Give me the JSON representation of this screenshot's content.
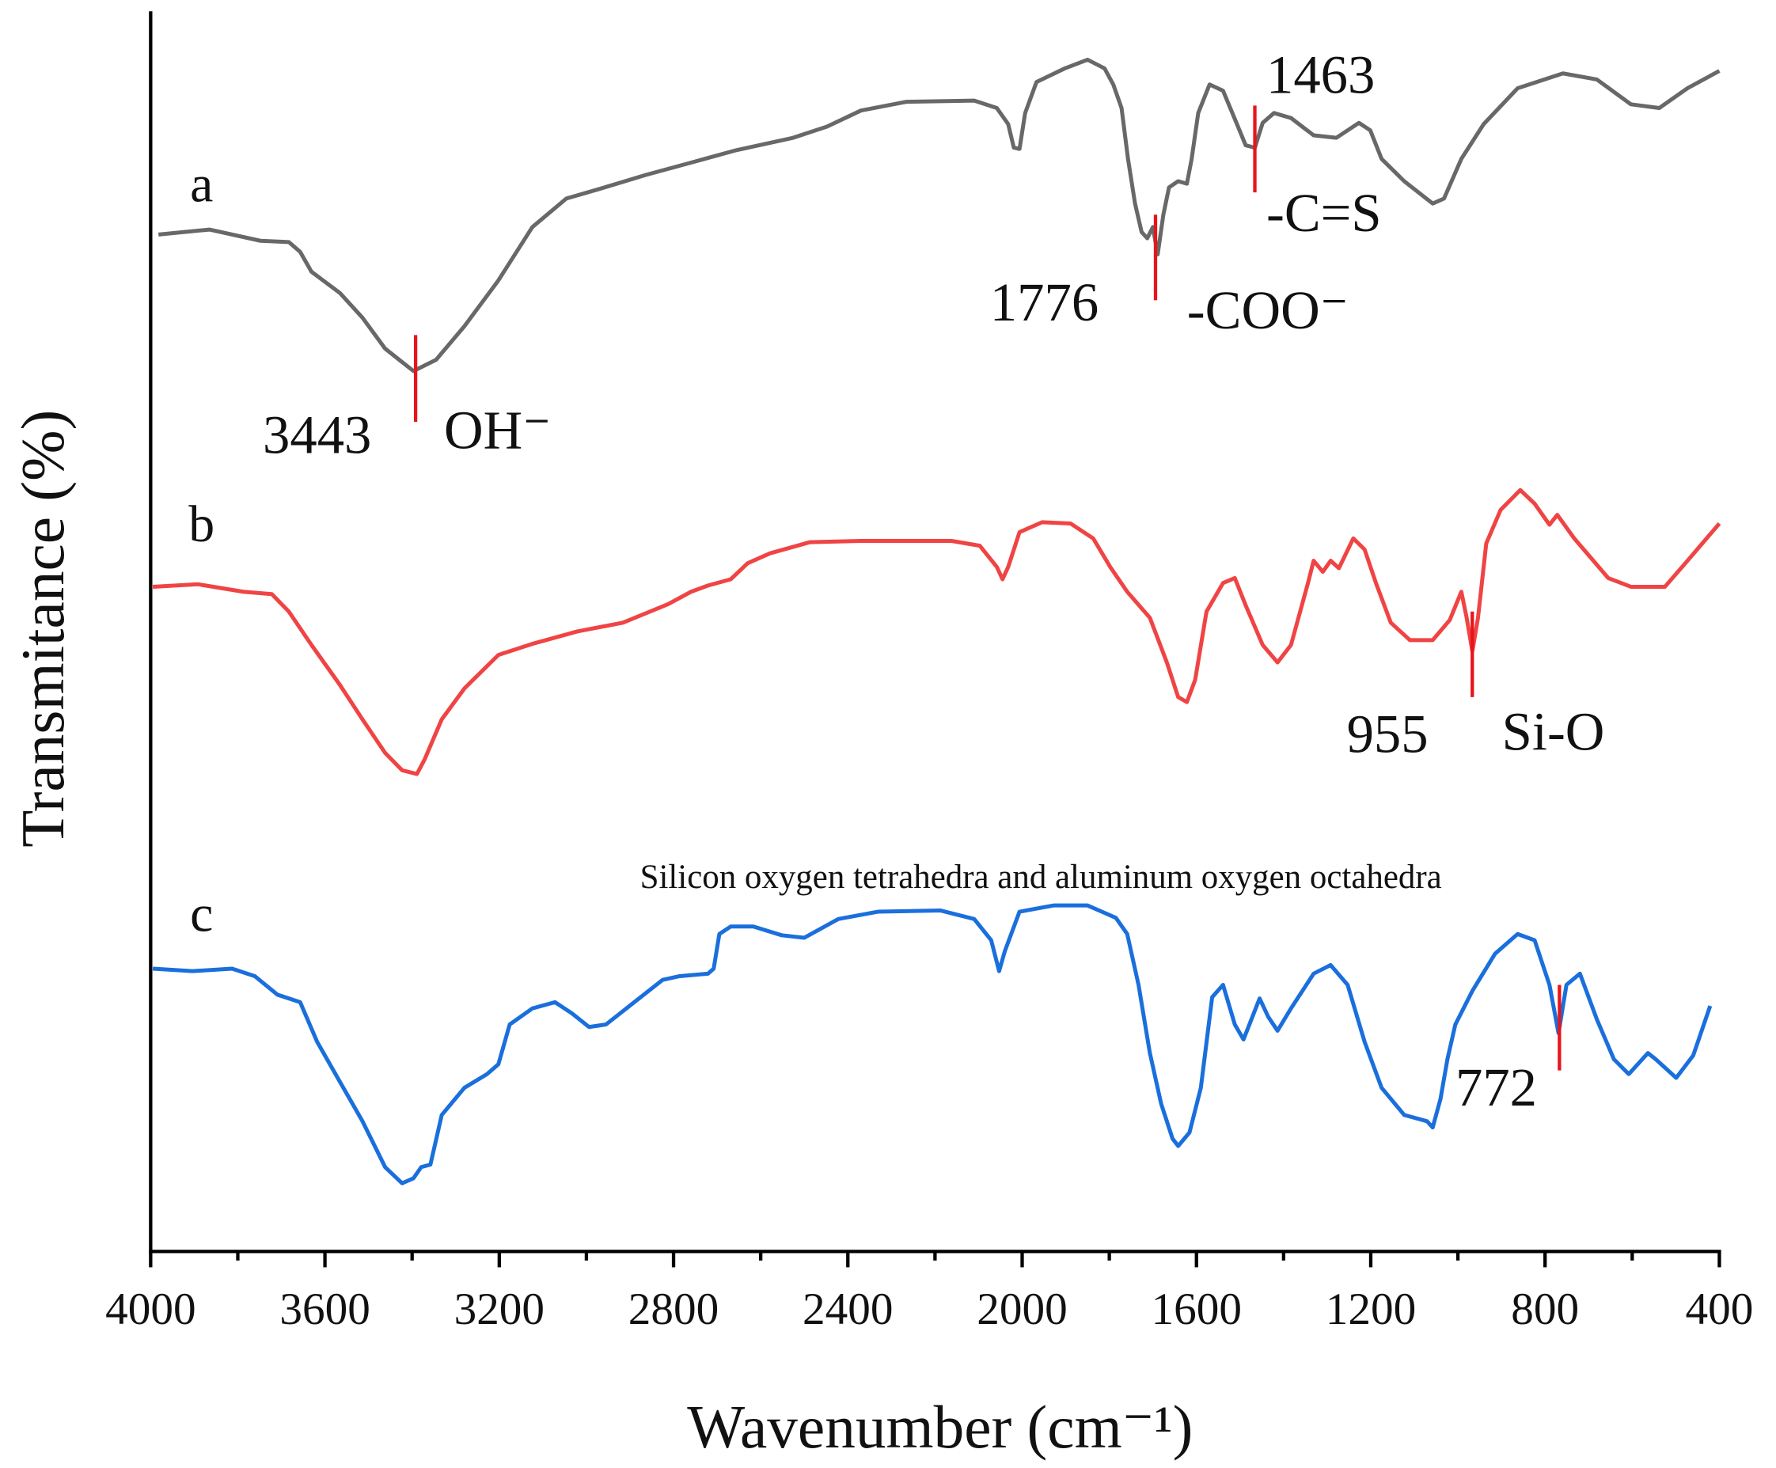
{
  "chart_data": {
    "type": "line",
    "xlabel": "Wavenumber (cm⁻¹)",
    "ylabel": "Transmitance (%)",
    "xlim": [
      4000,
      400
    ],
    "xticks": [
      4000,
      3600,
      3200,
      2800,
      2400,
      2000,
      1600,
      1200,
      800,
      400
    ],
    "xminorticks": [
      3800,
      3400,
      3000,
      2600,
      2200,
      1800,
      1400,
      1000,
      600
    ],
    "ylim": [
      0,
      100
    ],
    "series": [
      {
        "name": "a",
        "color": "#686868",
        "x": [
          3982,
          3865,
          3748,
          3683,
          3657,
          3631,
          3566,
          3514,
          3462,
          3397,
          3345,
          3280,
          3202,
          3124,
          3046,
          2968,
          2864,
          2760,
          2656,
          2526,
          2448,
          2370,
          2266,
          2110,
          2058,
          2032,
          2019,
          2006,
          1993,
          1967,
          1902,
          1850,
          1811,
          1791,
          1772,
          1757,
          1741,
          1726,
          1713,
          1700,
          1689,
          1676,
          1663,
          1642,
          1622,
          1611,
          1596,
          1570,
          1539,
          1507,
          1487,
          1466,
          1448,
          1422,
          1383,
          1331,
          1279,
          1253,
          1227,
          1201,
          1175,
          1123,
          1058,
          1032,
          992,
          941,
          863,
          759,
          681,
          603,
          538,
          473,
          400
        ],
        "values": [
          82.0,
          82.4,
          81.5,
          81.4,
          80.6,
          79.0,
          77.3,
          75.3,
          72.8,
          71.0,
          71.9,
          74.6,
          78.3,
          82.6,
          84.9,
          85.7,
          86.8,
          87.8,
          88.8,
          89.8,
          90.7,
          92.0,
          92.7,
          92.8,
          92.2,
          90.9,
          89.0,
          88.9,
          91.8,
          94.3,
          95.4,
          96.1,
          95.4,
          94.1,
          92.2,
          88.1,
          84.5,
          82.2,
          81.7,
          82.6,
          80.4,
          83.6,
          85.8,
          86.3,
          86.1,
          88.1,
          91.8,
          94.1,
          93.6,
          90.9,
          89.2,
          89.0,
          91.0,
          91.8,
          91.4,
          90.0,
          89.8,
          90.4,
          91.0,
          90.4,
          88.1,
          86.3,
          84.5,
          84.9,
          88.1,
          90.9,
          93.8,
          95.0,
          94.5,
          92.5,
          92.2,
          93.8,
          95.2
        ]
      },
      {
        "name": "b",
        "color": "#f04444",
        "x": [
          3995,
          3891,
          3787,
          3722,
          3683,
          3631,
          3566,
          3514,
          3462,
          3423,
          3389,
          3371,
          3332,
          3280,
          3202,
          3124,
          3020,
          2916,
          2812,
          2760,
          2721,
          2669,
          2630,
          2578,
          2487,
          2370,
          2162,
          2097,
          2058,
          2045,
          2032,
          2006,
          1954,
          1889,
          1837,
          1798,
          1759,
          1707,
          1668,
          1642,
          1622,
          1603,
          1577,
          1539,
          1512,
          1487,
          1448,
          1414,
          1383,
          1344,
          1331,
          1310,
          1292,
          1273,
          1240,
          1214,
          1188,
          1154,
          1110,
          1058,
          1019,
          992,
          980,
          967,
          954,
          935,
          902,
          857,
          824,
          790,
          772,
          733,
          655,
          603,
          525,
          473,
          400
        ],
        "values": [
          53.6,
          53.8,
          53.2,
          53.0,
          51.6,
          48.9,
          45.7,
          42.9,
          40.2,
          38.8,
          38.5,
          39.7,
          42.9,
          45.4,
          48.1,
          49.0,
          50.0,
          50.7,
          52.2,
          53.2,
          53.7,
          54.2,
          55.5,
          56.3,
          57.2,
          57.3,
          57.3,
          56.9,
          55.2,
          54.2,
          55.2,
          58.0,
          58.8,
          58.7,
          57.5,
          55.2,
          53.2,
          51.1,
          47.5,
          44.7,
          44.3,
          46.1,
          51.6,
          53.9,
          54.3,
          52.1,
          48.9,
          47.5,
          48.9,
          53.9,
          55.7,
          54.8,
          55.7,
          55.1,
          57.5,
          56.6,
          53.9,
          50.7,
          49.3,
          49.3,
          50.9,
          53.2,
          51.1,
          48.4,
          51.1,
          57.1,
          59.8,
          61.4,
          60.3,
          58.6,
          59.4,
          57.5,
          54.3,
          53.6,
          53.6,
          55.7,
          58.7
        ]
      },
      {
        "name": "c",
        "color": "#1a6fdc",
        "x": [
          3995,
          3904,
          3813,
          3761,
          3709,
          3657,
          3618,
          3566,
          3514,
          3462,
          3423,
          3397,
          3379,
          3358,
          3332,
          3280,
          3228,
          3202,
          3176,
          3124,
          3072,
          3033,
          2994,
          2955,
          2890,
          2825,
          2786,
          2721,
          2708,
          2695,
          2669,
          2617,
          2552,
          2500,
          2422,
          2331,
          2188,
          2110,
          2071,
          2053,
          2040,
          2006,
          1928,
          1850,
          1785,
          1759,
          1733,
          1707,
          1681,
          1655,
          1642,
          1616,
          1590,
          1564,
          1539,
          1512,
          1492,
          1474,
          1455,
          1435,
          1414,
          1383,
          1331,
          1292,
          1253,
          1214,
          1175,
          1123,
          1071,
          1058,
          1040,
          1024,
          1006,
          967,
          915,
          863,
          824,
          790,
          769,
          751,
          720,
          681,
          642,
          608,
          564,
          546,
          499,
          460,
          421
        ],
        "values": [
          22.8,
          22.6,
          22.8,
          22.2,
          20.7,
          20.1,
          16.9,
          13.7,
          10.5,
          6.8,
          5.5,
          5.9,
          6.8,
          7.0,
          11.0,
          13.2,
          14.3,
          15.1,
          18.3,
          19.6,
          20.1,
          19.2,
          18.1,
          18.3,
          20.1,
          21.9,
          22.2,
          22.4,
          22.8,
          25.6,
          26.2,
          26.2,
          25.5,
          25.3,
          26.8,
          27.4,
          27.5,
          26.8,
          25.1,
          22.6,
          24.2,
          27.4,
          27.9,
          27.9,
          26.9,
          25.6,
          21.5,
          16.0,
          11.9,
          9.1,
          8.5,
          9.6,
          13.2,
          20.5,
          21.5,
          18.3,
          17.1,
          18.7,
          20.4,
          18.9,
          17.8,
          19.6,
          22.4,
          23.1,
          21.5,
          16.9,
          13.2,
          11.0,
          10.5,
          10.0,
          12.3,
          15.5,
          18.3,
          21.0,
          24.0,
          25.6,
          25.1,
          21.5,
          17.6,
          21.5,
          22.4,
          18.7,
          15.5,
          14.3,
          16.0,
          15.5,
          14.0,
          15.8,
          19.8
        ]
      }
    ],
    "annotations": [
      {
        "label": "3443",
        "group": "OH⁻",
        "x": 3392,
        "y": [
          66.9,
          73.9
        ]
      },
      {
        "label": "1776",
        "group": "-COO⁻",
        "x": 1694,
        "y": [
          76.7,
          83.6
        ]
      },
      {
        "label": "1463",
        "group": "-C=S",
        "x": 1466,
        "y": [
          85.4,
          92.4
        ]
      },
      {
        "label": "955",
        "group": "Si-O",
        "x": 967,
        "y": [
          44.7,
          51.6
        ]
      },
      {
        "label": "772",
        "x": 767,
        "y": [
          14.6,
          21.5
        ]
      }
    ],
    "note": "Silicon oxygen tetrahedra and aluminum oxygen octahedra",
    "marker_color": "#e8141c"
  }
}
